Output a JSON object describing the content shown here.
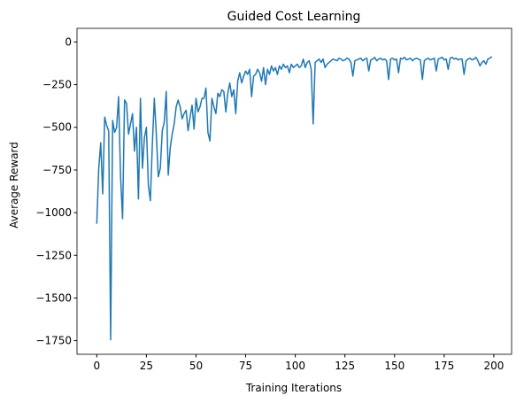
{
  "chart_data": {
    "type": "line",
    "title": "Guided Cost Learning",
    "x_label": "Training Iterations",
    "y_label": "Average Reward",
    "x": [
      0,
      1,
      2,
      3,
      4,
      5,
      6,
      7,
      8,
      9,
      10,
      11,
      12,
      13,
      14,
      15,
      16,
      17,
      18,
      19,
      20,
      21,
      22,
      23,
      24,
      25,
      26,
      27,
      28,
      29,
      30,
      31,
      32,
      33,
      34,
      35,
      36,
      37,
      38,
      39,
      40,
      41,
      42,
      43,
      44,
      45,
      46,
      47,
      48,
      49,
      50,
      51,
      52,
      53,
      54,
      55,
      56,
      57,
      58,
      59,
      60,
      61,
      62,
      63,
      64,
      65,
      66,
      67,
      68,
      69,
      70,
      71,
      72,
      73,
      74,
      75,
      76,
      77,
      78,
      79,
      80,
      81,
      82,
      83,
      84,
      85,
      86,
      87,
      88,
      89,
      90,
      91,
      92,
      93,
      94,
      95,
      96,
      97,
      98,
      99,
      100,
      101,
      102,
      103,
      104,
      105,
      106,
      107,
      108,
      109,
      110,
      111,
      112,
      113,
      114,
      115,
      116,
      117,
      118,
      119,
      120,
      121,
      122,
      123,
      124,
      125,
      126,
      127,
      128,
      129,
      130,
      131,
      132,
      133,
      134,
      135,
      136,
      137,
      138,
      139,
      140,
      141,
      142,
      143,
      144,
      145,
      146,
      147,
      148,
      149,
      150,
      151,
      152,
      153,
      154,
      155,
      156,
      157,
      158,
      159,
      160,
      161,
      162,
      163,
      164,
      165,
      166,
      167,
      168,
      169,
      170,
      171,
      172,
      173,
      174,
      175,
      176,
      177,
      178,
      179,
      180,
      181,
      182,
      183,
      184,
      185,
      186,
      187,
      188,
      189,
      190,
      191,
      192,
      193,
      194,
      195,
      196,
      197,
      198,
      199
    ],
    "series": [
      {
        "name": "Average Reward",
        "color": "#1f77b4",
        "values": [
          -1065,
          -740,
          -590,
          -890,
          -440,
          -490,
          -520,
          -1745,
          -460,
          -530,
          -500,
          -320,
          -790,
          -1035,
          -340,
          -360,
          -540,
          -480,
          -420,
          -640,
          -500,
          -920,
          -330,
          -740,
          -560,
          -500,
          -840,
          -930,
          -600,
          -330,
          -540,
          -790,
          -740,
          -520,
          -470,
          -290,
          -780,
          -620,
          -540,
          -480,
          -380,
          -340,
          -380,
          -450,
          -420,
          -400,
          -520,
          -440,
          -370,
          -510,
          -330,
          -410,
          -380,
          -330,
          -330,
          -270,
          -530,
          -580,
          -330,
          -380,
          -420,
          -300,
          -320,
          -280,
          -290,
          -410,
          -300,
          -240,
          -320,
          -280,
          -420,
          -230,
          -180,
          -240,
          -200,
          -170,
          -190,
          -160,
          -320,
          -200,
          -190,
          -160,
          -180,
          -230,
          -150,
          -250,
          -160,
          -190,
          -140,
          -170,
          -150,
          -190,
          -140,
          -160,
          -130,
          -150,
          -140,
          -180,
          -130,
          -150,
          -140,
          -130,
          -150,
          -140,
          -100,
          -150,
          -120,
          -110,
          -160,
          -480,
          -120,
          -110,
          -100,
          -120,
          -100,
          -150,
          -130,
          -120,
          -110,
          -100,
          -105,
          -110,
          -95,
          -100,
          -110,
          -105,
          -95,
          -100,
          -120,
          -200,
          -110,
          -105,
          -100,
          -95,
          -110,
          -100,
          -95,
          -170,
          -105,
          -100,
          -90,
          -110,
          -100,
          -95,
          -105,
          -100,
          -110,
          -220,
          -100,
          -95,
          -105,
          -100,
          -180,
          -95,
          -100,
          -90,
          -105,
          -100,
          -95,
          -110,
          -100,
          -95,
          -100,
          -105,
          -220,
          -110,
          -100,
          -95,
          -105,
          -100,
          -95,
          -170,
          -100,
          -95,
          -90,
          -105,
          -100,
          -160,
          -95,
          -90,
          -100,
          -95,
          -105,
          -100,
          -100,
          -190,
          -110,
          -100,
          -95,
          -105,
          -100,
          -90,
          -110,
          -140,
          -120,
          -110,
          -130,
          -100,
          -95,
          -85
        ]
      }
    ],
    "xlim": [
      -9.95,
      208.95
    ],
    "ylim": [
      -1830,
      80
    ],
    "xticks": [
      0,
      25,
      50,
      75,
      100,
      125,
      150,
      175,
      200
    ],
    "yticks": [
      {
        "value": -1750,
        "label": "−1750"
      },
      {
        "value": -1500,
        "label": "−1500"
      },
      {
        "value": -1250,
        "label": "−1250"
      },
      {
        "value": -1000,
        "label": "−1000"
      },
      {
        "value": -750,
        "label": "−750"
      },
      {
        "value": -500,
        "label": "−500"
      },
      {
        "value": -250,
        "label": "−250"
      },
      0
    ],
    "grid": false
  }
}
